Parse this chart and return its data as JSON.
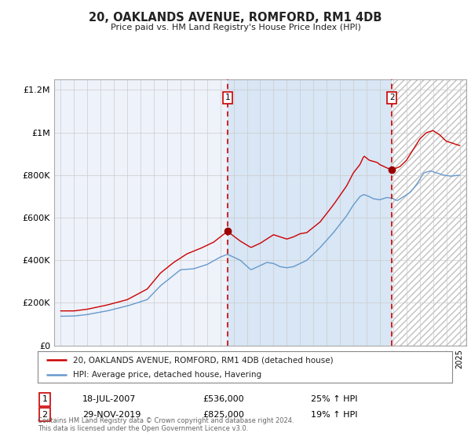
{
  "title": "20, OAKLANDS AVENUE, ROMFORD, RM1 4DB",
  "subtitle": "Price paid vs. HM Land Registry's House Price Index (HPI)",
  "legend_line1": "20, OAKLANDS AVENUE, ROMFORD, RM1 4DB (detached house)",
  "legend_line2": "HPI: Average price, detached house, Havering",
  "sale1_date": "18-JUL-2007",
  "sale1_price": 536000,
  "sale1_label": "25% ↑ HPI",
  "sale2_date": "29-NOV-2019",
  "sale2_price": 825000,
  "sale2_label": "19% ↑ HPI",
  "sale1_year": 2007.54,
  "sale2_year": 2019.91,
  "hpi_color": "#6699cc",
  "price_color": "#cc0000",
  "bg_color": "#ffffff",
  "plot_bg": "#eef2fa",
  "shaded_bg": "#d8e6f5",
  "grid_color": "#cccccc",
  "hatch_color": "#c0c0c0",
  "footnote": "Contains HM Land Registry data © Crown copyright and database right 2024.\nThis data is licensed under the Open Government Licence v3.0.",
  "ylim": [
    0,
    1250000
  ],
  "xlim": [
    1994.5,
    2025.5
  ],
  "yticks": [
    0,
    200000,
    400000,
    600000,
    800000,
    1000000,
    1200000
  ],
  "ytick_labels": [
    "£0",
    "£200K",
    "£400K",
    "£600K",
    "£800K",
    "£1M",
    "£1.2M"
  ]
}
